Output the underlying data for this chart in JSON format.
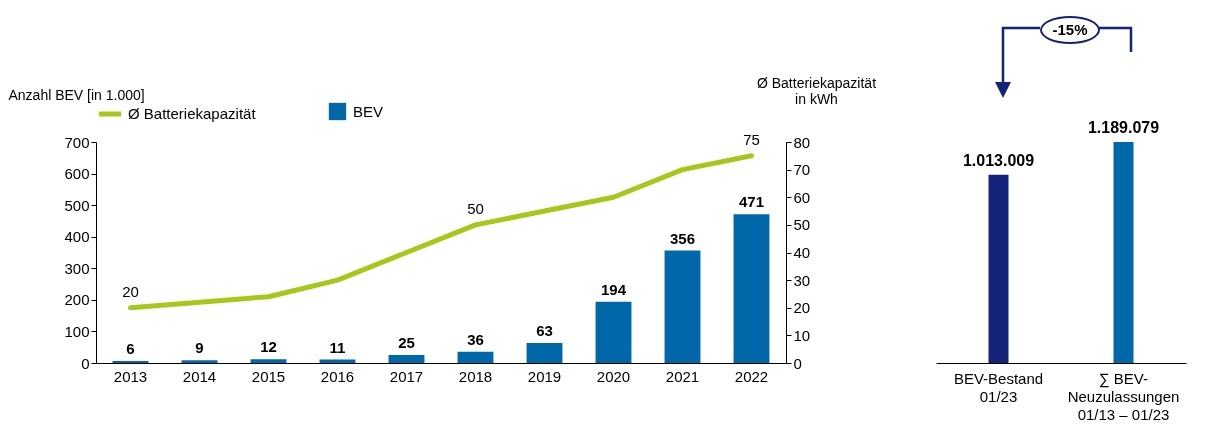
{
  "chart_data": [
    {
      "type": "bar",
      "categories": [
        "2013",
        "2014",
        "2015",
        "2016",
        "2017",
        "2018",
        "2019",
        "2020",
        "2021",
        "2022"
      ],
      "ylabel": "Anzahl BEV [in 1.000]",
      "y2label": "Ø Batteriekapazität\nin kWh",
      "ylim": [
        0,
        700
      ],
      "yticks": [
        0,
        100,
        200,
        300,
        400,
        500,
        600,
        700
      ],
      "y2lim": [
        0,
        80
      ],
      "y2ticks": [
        0,
        10,
        20,
        30,
        40,
        50,
        60,
        70,
        80
      ],
      "legend": "top left",
      "series": [
        {
          "name": "Ø Batteriekapazität",
          "type": "line",
          "axis": "y2",
          "color": "#a5c81a",
          "values": [
            20,
            22,
            24,
            30,
            40,
            50,
            55,
            60,
            70,
            75
          ],
          "value_labels": [
            "20",
            null,
            null,
            null,
            null,
            "50",
            null,
            null,
            null,
            "75"
          ]
        },
        {
          "name": "BEV",
          "type": "bar",
          "color": "#0068a8",
          "values": [
            6,
            9,
            12,
            11,
            25,
            36,
            63,
            194,
            356,
            471
          ],
          "data_labels": true
        }
      ]
    },
    {
      "type": "bar",
      "categories": [
        "BEV-Bestand\n01/23",
        "∑ BEV-\nNeuzulassungen\n01/13 – 01/23"
      ],
      "values": [
        1013009,
        1189079
      ],
      "colors": [
        "#14237a",
        "#0068a8"
      ],
      "value_labels": [
        "1.013.009",
        "1.189.079"
      ],
      "annotations": [
        "-15%"
      ]
    }
  ]
}
